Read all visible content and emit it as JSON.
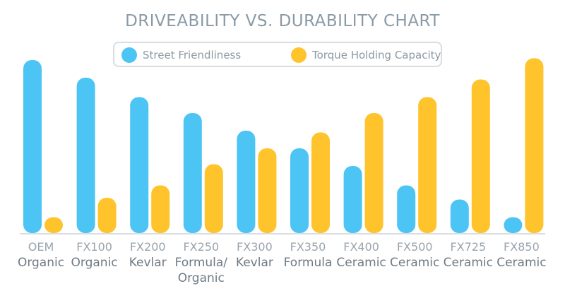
{
  "chart_data": {
    "type": "bar",
    "title": "DRIVEABILITY VS. DURABILITY CHART",
    "categories": [
      [
        "OEM",
        "Organic"
      ],
      [
        "FX100",
        "Organic"
      ],
      [
        "FX200",
        "Kevlar"
      ],
      [
        "FX250",
        "Formula/",
        "Organic"
      ],
      [
        "FX300",
        "Kevlar"
      ],
      [
        "FX350",
        "Formula"
      ],
      [
        "FX400",
        "Ceramic"
      ],
      [
        "FX500",
        "Ceramic"
      ],
      [
        "FX725",
        "Ceramic"
      ],
      [
        "FX850",
        "Ceramic"
      ]
    ],
    "series": [
      {
        "name": "Street Friendliness",
        "color": "#4cc4f4",
        "values": [
          98,
          88,
          77,
          68,
          58,
          48,
          38,
          27,
          19,
          9
        ]
      },
      {
        "name": "Torque Holding Capacity",
        "color": "#ffc32b",
        "values": [
          9,
          20,
          27,
          39,
          48,
          57,
          68,
          77,
          87,
          99
        ]
      }
    ],
    "xlabel": "",
    "ylabel": "",
    "ylim": [
      0,
      100
    ],
    "grid": false,
    "legend_position": "top-center"
  }
}
